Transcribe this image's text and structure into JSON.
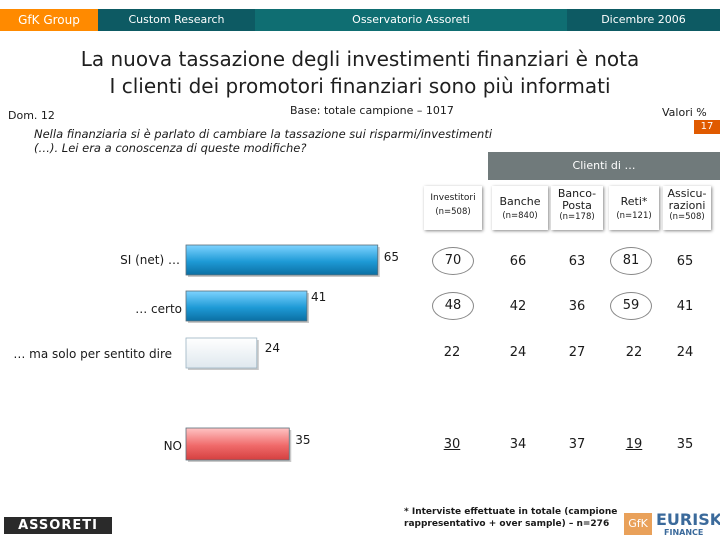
{
  "header": {
    "group": "GfK Group",
    "custom": "Custom Research",
    "oss": "Osservatorio Assoreti",
    "date": "Dicembre 2006",
    "colors": {
      "orange": "#ff8a00",
      "teal": "#0f6e72"
    }
  },
  "title_line1": "La nuova tassazione degli investimenti finanziari è nota",
  "title_line2": "I clienti dei promotori finanziari sono più informati",
  "dom": "Dom. 12",
  "base": "Base: totale campione – 1017",
  "valori": "Valori %",
  "page_number": "17",
  "question": "Nella finanziaria si è parlato di cambiare la tassazione sui risparmi/investimenti (…). Lei era a conoscenza di queste modifiche?",
  "clienti_header": "Clienti di …",
  "columns": [
    {
      "label": "Investitori",
      "n": "(n=508)"
    },
    {
      "label": "Banche",
      "n": "(n=840)"
    },
    {
      "label": "Banco-Posta",
      "n": "(n=178)"
    },
    {
      "label": "Reti*",
      "n": "(n=121)"
    },
    {
      "label": "Assicu-razioni",
      "n": "(n=508)"
    }
  ],
  "rows": [
    {
      "label": "SI (net) …",
      "cells": [
        "70",
        "66",
        "63",
        "81",
        "65"
      ]
    },
    {
      "label": "… certo",
      "cells": [
        "48",
        "42",
        "36",
        "59",
        "41"
      ]
    },
    {
      "label": "… ma solo per sentito dire",
      "cells": [
        "22",
        "24",
        "27",
        "22",
        "24"
      ]
    },
    {
      "label": "NO",
      "cells": [
        "30",
        "34",
        "37",
        "19",
        "35"
      ]
    }
  ],
  "chart_data": {
    "type": "bar",
    "categories": [
      "SI (net) …",
      "… certo",
      "… ma solo per sentito dire",
      "NO"
    ],
    "values": [
      65,
      41,
      24,
      35
    ],
    "colors": [
      "#1e9ad6",
      "#1e9ad6",
      "#ffffff",
      "#f06a6a"
    ]
  },
  "note": "* Interviste effettuate in totale (campione rappresentativo + over sample) – n=276",
  "logos": {
    "assoreti": "ASSORETI",
    "gfk": "GfK",
    "eurisko": "EURISKO",
    "finance": "FINANCE"
  }
}
